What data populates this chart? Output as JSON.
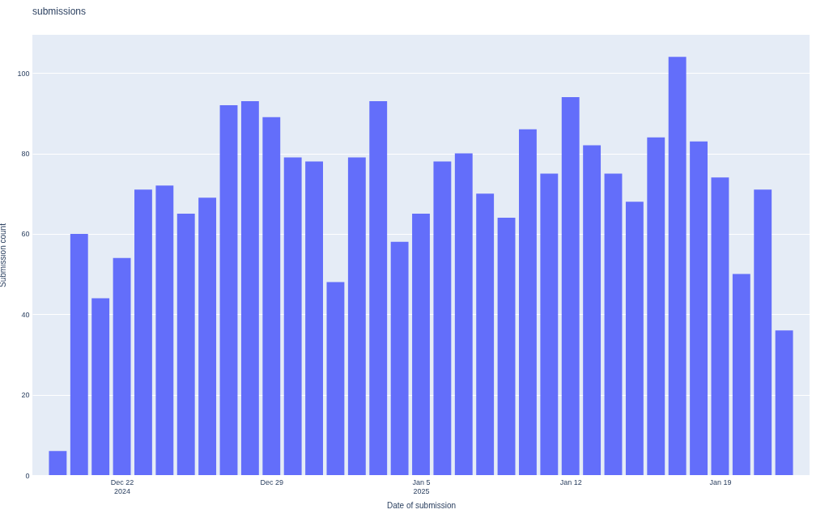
{
  "chart_data": {
    "type": "bar",
    "title": "submissions",
    "xlabel": "Date of submission",
    "ylabel": "Submission count",
    "x": [
      "2024-12-19",
      "2024-12-20",
      "2024-12-21",
      "2024-12-22",
      "2024-12-23",
      "2024-12-24",
      "2024-12-25",
      "2024-12-26",
      "2024-12-27",
      "2024-12-28",
      "2024-12-29",
      "2024-12-30",
      "2024-12-31",
      "2025-01-01",
      "2025-01-02",
      "2025-01-03",
      "2025-01-04",
      "2025-01-05",
      "2025-01-06",
      "2025-01-07",
      "2025-01-08",
      "2025-01-09",
      "2025-01-10",
      "2025-01-11",
      "2025-01-12",
      "2025-01-13",
      "2025-01-14",
      "2025-01-15",
      "2025-01-16",
      "2025-01-17",
      "2025-01-18",
      "2025-01-19",
      "2025-01-20",
      "2025-01-21",
      "2025-01-22"
    ],
    "values": [
      6,
      60,
      44,
      54,
      71,
      72,
      65,
      69,
      92,
      93,
      89,
      79,
      78,
      48,
      79,
      93,
      58,
      65,
      78,
      80,
      70,
      64,
      86,
      75,
      94,
      82,
      75,
      68,
      84,
      104,
      83,
      74,
      50,
      71,
      36
    ],
    "color": "#636efa",
    "ylim": [
      0,
      109.5
    ],
    "yticks": [
      0,
      20,
      40,
      60,
      80,
      100
    ],
    "xlim": [
      "2024-12-18",
      "2025-01-23"
    ],
    "xticks": [
      {
        "value": "2024-12-22",
        "label": "Dec 22\n2024"
      },
      {
        "value": "2024-12-29",
        "label": "Dec 29"
      },
      {
        "value": "2025-01-05",
        "label": "Jan 5\n2025"
      },
      {
        "value": "2025-01-12",
        "label": "Jan 12"
      },
      {
        "value": "2025-01-19",
        "label": "Jan 19"
      }
    ],
    "grid": "y"
  }
}
